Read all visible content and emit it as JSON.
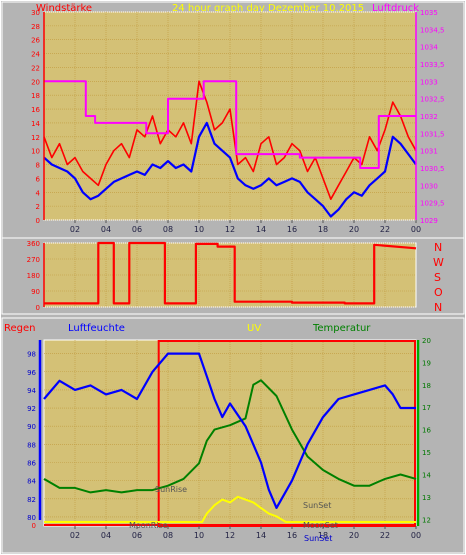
{
  "header": {
    "left": "Windstärke",
    "center": "24 hour graph day   Dezember 10.2015",
    "right": "Luftdruck"
  },
  "directions": [
    "N",
    "W",
    "S",
    "O",
    "N"
  ],
  "bottom_header": {
    "regen": "Regen",
    "luftfeuchte": "Luftfeuchte",
    "uv": "UV",
    "temperatur": "Temperatur"
  },
  "annotations": {
    "sunrise": "SunRise",
    "sunset": "SunSet",
    "moonrise": "MoonRise",
    "moonset": "MoonSet",
    "sunset_bottom": "SunSet"
  },
  "x_ticks": [
    "02",
    "04",
    "06",
    "08",
    "10",
    "12",
    "14",
    "16",
    "18",
    "20",
    "22",
    "00"
  ],
  "colors": {
    "bg": "#b4b4b4",
    "plot": "#d4c176",
    "grid": "#c09a3e",
    "red": "#ff0000",
    "blue": "#0000ff",
    "magenta": "#ff00ff",
    "yellow": "#ffff00",
    "green": "#008000",
    "axis_blue": "#0000cc",
    "axis_green": "#007700"
  },
  "chart_data": [
    {
      "type": "line",
      "title": "24 hour graph day   Dezember 10.2015",
      "x_range_hours": [
        0,
        24
      ],
      "y_left_label": "Windstärke",
      "y_left_ticks": [
        0,
        2,
        4,
        6,
        8,
        10,
        12,
        14,
        16,
        18,
        20,
        22,
        24,
        26,
        28,
        30
      ],
      "y_right_label": "Luftdruck",
      "y_right_ticks": [
        1029,
        1029.5,
        1030,
        1030.5,
        1031,
        1031.5,
        1032,
        1032.5,
        1033,
        1033.5,
        1034,
        1034.5,
        1035
      ],
      "series": [
        {
          "name": "Windstärke",
          "axis": "left",
          "x": [
            0,
            0.5,
            1,
            1.5,
            2,
            2.5,
            3,
            3.5,
            4,
            4.5,
            5,
            5.5,
            6,
            6.5,
            7,
            7.5,
            8,
            8.5,
            9,
            9.5,
            10,
            10.5,
            11,
            11.5,
            12,
            12.5,
            13,
            13.5,
            14,
            14.5,
            15,
            15.5,
            16,
            16.5,
            17,
            17.5,
            18,
            18.5,
            19,
            19.5,
            20,
            20.5,
            21,
            21.5,
            22,
            22.5,
            23,
            23.5,
            24
          ],
          "values": [
            12,
            9,
            11,
            8,
            9,
            7,
            6,
            5,
            8,
            10,
            11,
            9,
            13,
            12,
            15,
            11,
            13,
            12,
            14,
            11,
            20,
            17,
            13,
            14,
            16,
            8,
            9,
            7,
            11,
            12,
            8,
            9,
            11,
            10,
            7,
            9,
            6,
            3,
            5,
            7,
            9,
            8,
            12,
            10,
            13,
            17,
            15,
            12,
            10
          ]
        },
        {
          "name": "Windstärke Mittel",
          "axis": "left",
          "x": [
            0,
            0.5,
            1,
            1.5,
            2,
            2.5,
            3,
            3.5,
            4,
            4.5,
            5,
            5.5,
            6,
            6.5,
            7,
            7.5,
            8,
            8.5,
            9,
            9.5,
            10,
            10.5,
            11,
            11.5,
            12,
            12.5,
            13,
            13.5,
            14,
            14.5,
            15,
            15.5,
            16,
            16.5,
            17,
            17.5,
            18,
            18.5,
            19,
            19.5,
            20,
            20.5,
            21,
            21.5,
            22,
            22.5,
            23,
            23.5,
            24
          ],
          "values": [
            9,
            8,
            7.5,
            7,
            6,
            4,
            3,
            3.5,
            4.5,
            5.5,
            6,
            6.5,
            7,
            6.5,
            8,
            7.5,
            8.5,
            7.5,
            8,
            7,
            12,
            14,
            11,
            10,
            9,
            6,
            5,
            4.5,
            5,
            6,
            5,
            5.5,
            6,
            5.5,
            4,
            3,
            2,
            0.5,
            1.5,
            3,
            4,
            3.5,
            5,
            6,
            7,
            12,
            11,
            9.5,
            8
          ]
        },
        {
          "name": "Luftdruck",
          "axis": "right",
          "x": [
            0,
            2.7,
            2.7,
            3.3,
            3.3,
            6.6,
            6.6,
            8,
            8,
            10.3,
            10.3,
            12.4,
            12.4,
            16.5,
            16.5,
            20.4,
            20.4,
            21.6,
            21.6,
            24
          ],
          "values": [
            1033,
            1033,
            1032,
            1032,
            1031.8,
            1031.8,
            1031.5,
            1031.5,
            1032.5,
            1032.5,
            1033,
            1033,
            1030.9,
            1030.9,
            1030.8,
            1030.8,
            1030.5,
            1030.5,
            1032,
            1032
          ]
        }
      ]
    },
    {
      "type": "line",
      "y_ticks": [
        0,
        90,
        180,
        270,
        360
      ],
      "direction_labels": [
        "N",
        "W",
        "S",
        "O",
        "N"
      ],
      "series": [
        {
          "name": "Windrichtung",
          "x": [
            0,
            3.5,
            3.5,
            4.5,
            4.5,
            5.5,
            5.5,
            7.8,
            7.8,
            9.8,
            9.8,
            11.2,
            11.2,
            12.3,
            12.3,
            16,
            16,
            19.4,
            19.4,
            21.3,
            21.3,
            24
          ],
          "values": [
            20,
            20,
            360,
            360,
            20,
            20,
            360,
            360,
            20,
            20,
            355,
            355,
            340,
            340,
            30,
            30,
            25,
            25,
            20,
            20,
            350,
            330
          ]
        }
      ]
    },
    {
      "type": "line",
      "y_left_label": "Luftfeuchte",
      "y_left_ticks": [
        80,
        82,
        84,
        86,
        88,
        90,
        92,
        94,
        96,
        98
      ],
      "y_right_label": "Temperatur",
      "y_right_ticks": [
        12,
        13,
        14,
        15,
        16,
        17,
        18,
        19,
        20
      ],
      "y_rain_ticks": [
        0
      ],
      "series": [
        {
          "name": "Luftfeuchte",
          "axis": "left",
          "x": [
            0,
            1,
            2,
            3,
            4,
            5,
            6,
            7,
            8,
            9,
            10,
            10.5,
            11,
            11.5,
            12,
            13,
            14,
            14.5,
            15,
            15.5,
            16,
            17,
            18,
            19,
            20,
            21,
            22,
            22.5,
            23,
            24
          ],
          "values": [
            93,
            95,
            94,
            94.5,
            93.5,
            94,
            93,
            96,
            98,
            98,
            98,
            95.5,
            93,
            91,
            92.5,
            90,
            86,
            83,
            81,
            82.5,
            84,
            88,
            91,
            93,
            93.5,
            94,
            94.5,
            93.5,
            92,
            92
          ]
        },
        {
          "name": "Temperatur",
          "axis": "right",
          "x": [
            0,
            1,
            2,
            3,
            4,
            5,
            6,
            7,
            8,
            9,
            10,
            10.5,
            11,
            12,
            13,
            13.5,
            14,
            15,
            16,
            17,
            18,
            19,
            20,
            21,
            22,
            23,
            24
          ],
          "values": [
            13.8,
            13.4,
            13.4,
            13.2,
            13.3,
            13.2,
            13.3,
            13.3,
            13.5,
            13.8,
            14.5,
            15.5,
            16,
            16.2,
            16.5,
            18,
            18.2,
            17.5,
            16,
            14.8,
            14.2,
            13.8,
            13.5,
            13.5,
            13.8,
            14,
            13.8
          ]
        },
        {
          "name": "UV",
          "axis": "uv",
          "x": [
            0,
            10.2,
            10.5,
            11,
            11.5,
            12,
            12.5,
            13,
            13.5,
            14,
            14.5,
            15,
            15.3,
            15.6,
            24
          ],
          "values": [
            0,
            0,
            0.3,
            0.6,
            0.8,
            0.7,
            0.9,
            0.8,
            0.7,
            0.5,
            0.3,
            0.2,
            0.1,
            0,
            0
          ]
        },
        {
          "name": "Regen",
          "axis": "rain",
          "x": [
            0,
            24
          ],
          "values": [
            0,
            0
          ]
        }
      ]
    }
  ]
}
